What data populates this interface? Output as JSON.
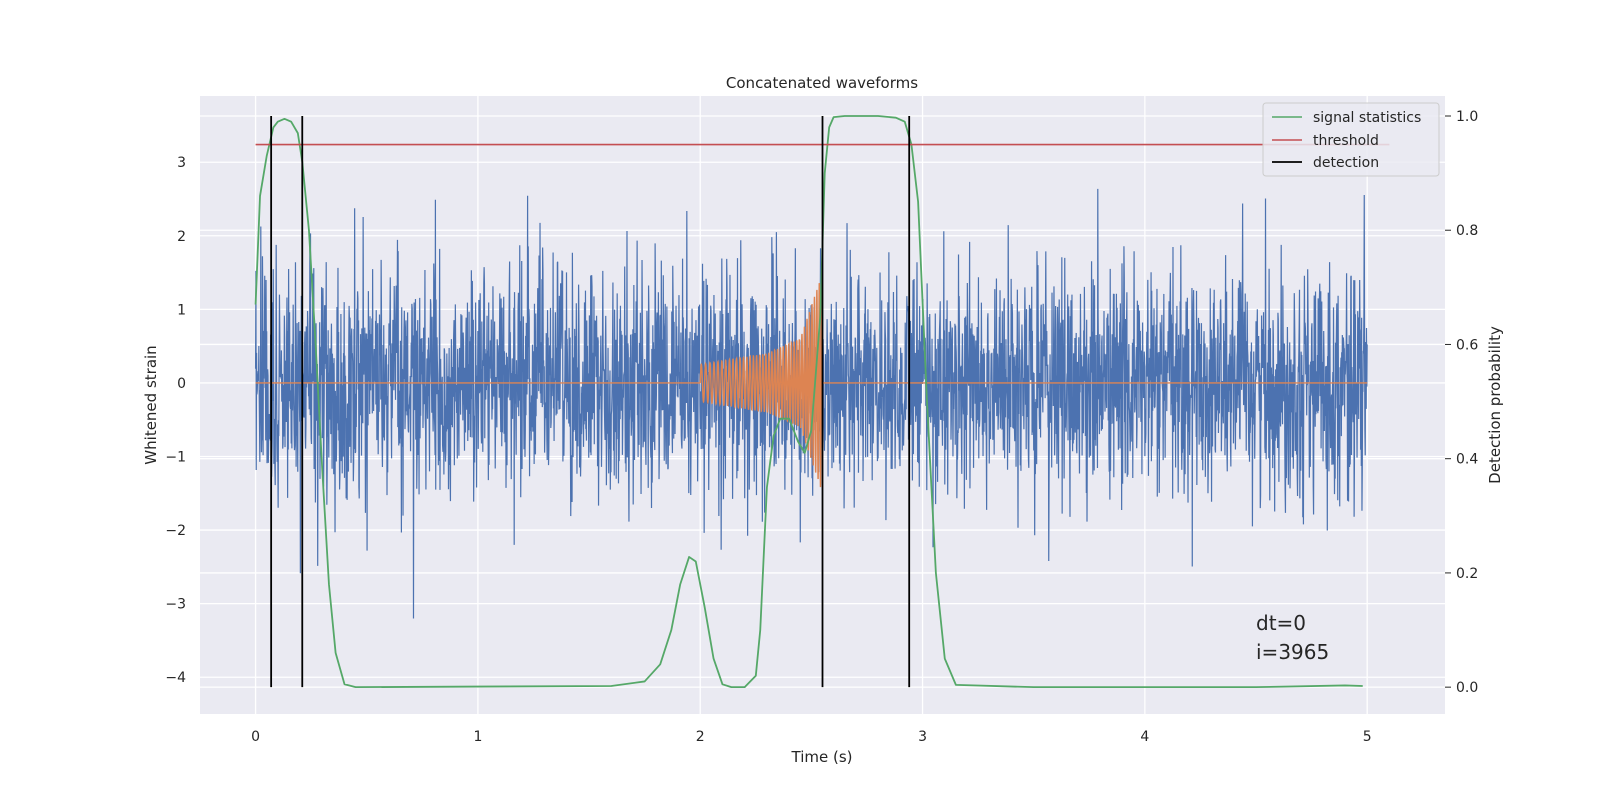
{
  "chart_data": {
    "type": "line",
    "title": "Concatenated waveforms",
    "xlabel": "Time (s)",
    "ylabel": "Whitened strain",
    "y2label": "Detection probability",
    "xlim": [
      -0.25,
      5.35
    ],
    "ylim": [
      -4.5,
      3.9
    ],
    "y2lim": [
      -0.047,
      1.035
    ],
    "xticks": [
      "0",
      "1",
      "2",
      "3",
      "4",
      "5"
    ],
    "yticks": [
      "−4",
      "−3",
      "−2",
      "−1",
      "0",
      "1",
      "2",
      "3"
    ],
    "y2ticks": [
      "0.0",
      "0.2",
      "0.4",
      "0.6",
      "0.8",
      "1.0"
    ],
    "grid": true,
    "legend_position": "top-right",
    "annotations": [
      "dt=0",
      "i=3965"
    ],
    "colors": {
      "strain": "#4c72b0",
      "template": "#dd8452",
      "signal_statistics": "#55a868",
      "threshold": "#c44e52",
      "detection": "#000000"
    },
    "series": [
      {
        "name": "",
        "kind": "whitened-strain-noise",
        "x_range": [
          0,
          5
        ],
        "std": 0.75
      },
      {
        "name": "",
        "kind": "chirp-template",
        "x_range": [
          2.0,
          2.55
        ],
        "envelope": [
          [
            2.0,
            0.25
          ],
          [
            2.3,
            0.4
          ],
          [
            2.45,
            0.6
          ],
          [
            2.55,
            1.5
          ]
        ],
        "baseline": 0
      },
      {
        "name": "signal statistics",
        "axis": "right",
        "x": [
          0,
          0.02,
          0.05,
          0.08,
          0.1,
          0.13,
          0.16,
          0.19,
          0.21,
          0.24,
          0.27,
          0.3,
          0.33,
          0.36,
          0.4,
          0.45,
          1.0,
          1.6,
          1.75,
          1.82,
          1.87,
          1.91,
          1.95,
          1.98,
          2.02,
          2.06,
          2.1,
          2.14,
          2.2,
          2.25,
          2.27,
          2.3,
          2.33,
          2.36,
          2.4,
          2.44,
          2.47,
          2.5,
          2.54,
          2.56,
          2.58,
          2.6,
          2.65,
          2.8,
          2.88,
          2.92,
          2.95,
          2.98,
          3.02,
          3.06,
          3.1,
          3.15,
          3.5,
          4.5,
          4.9,
          4.98
        ],
        "y": [
          0.67,
          0.86,
          0.93,
          0.98,
          0.99,
          0.995,
          0.99,
          0.97,
          0.92,
          0.8,
          0.6,
          0.38,
          0.18,
          0.06,
          0.005,
          0.0,
          0.001,
          0.002,
          0.01,
          0.04,
          0.1,
          0.18,
          0.228,
          0.22,
          0.14,
          0.05,
          0.005,
          0.0,
          0.0,
          0.02,
          0.1,
          0.35,
          0.44,
          0.47,
          0.47,
          0.43,
          0.41,
          0.45,
          0.65,
          0.9,
          0.98,
          0.998,
          1.0,
          1.0,
          0.997,
          0.99,
          0.95,
          0.85,
          0.5,
          0.2,
          0.05,
          0.004,
          0.0,
          0.0,
          0.003,
          0.002
        ]
      },
      {
        "name": "threshold",
        "axis": "right",
        "x": [
          0,
          5.1
        ],
        "y": [
          0.95,
          0.95
        ]
      },
      {
        "name": "detection",
        "kind": "vertical-lines",
        "x": [
          0.07,
          0.21,
          2.55,
          2.94
        ],
        "y_range_right": [
          0.0,
          1.0
        ]
      }
    ]
  }
}
